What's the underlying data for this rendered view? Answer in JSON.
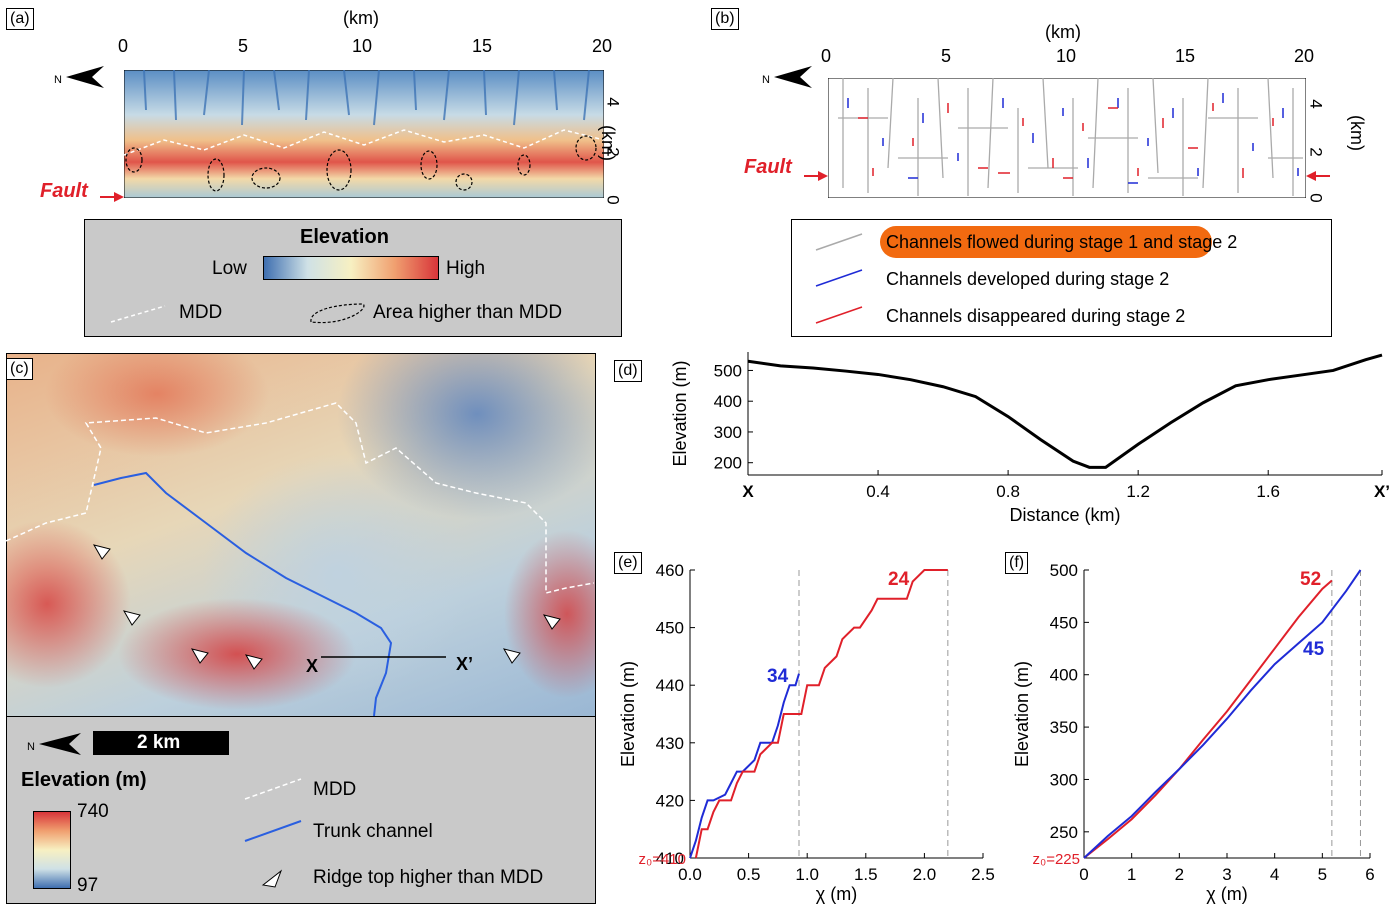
{
  "panels": {
    "a": {
      "label": "(a)",
      "top_unit": "(km)",
      "side_unit": "(km)",
      "top_ticks": [
        "0",
        "5",
        "10",
        "15",
        "20"
      ],
      "side_ticks": [
        "4",
        "2",
        "0"
      ],
      "fault": "Fault",
      "legend": {
        "title": "Elevation",
        "low": "Low",
        "high": "High",
        "mdd": "MDD",
        "area": "Area higher than MDD"
      }
    },
    "b": {
      "label": "(b)",
      "top_unit": "(km)",
      "side_unit": "(km)",
      "top_ticks": [
        "0",
        "5",
        "10",
        "15",
        "20"
      ],
      "side_ticks": [
        "4",
        "2",
        "0"
      ],
      "fault": "Fault",
      "legend": {
        "item1": "Channels flowed during stage 1 and stage 2",
        "item2": "Channels developed during stage 2",
        "item3": "Channels disappeared during stage 2"
      }
    },
    "c": {
      "label": "(c)",
      "scale": "2 km",
      "x_label": "X",
      "xp_label": "X’",
      "legend": {
        "title": "Elevation (m)",
        "max": "740",
        "min": "97",
        "mdd": "MDD",
        "trunk": "Trunk channel",
        "ridge": "Ridge top higher than MDD"
      }
    },
    "d": {
      "label": "(d)"
    },
    "e": {
      "label": "(e)"
    },
    "f": {
      "label": "(f)"
    }
  },
  "colors": {
    "gray": "#aaaaaa",
    "blue": "#1f2bd6",
    "red": "#e0202a",
    "highlight": "#f26a10",
    "legend_bg": "#c9c9c9",
    "fault_red": "#e0202a"
  },
  "chart_data": [
    {
      "id": "d",
      "type": "line",
      "xlabel": "Distance (km)",
      "ylabel": "Elevation (m)",
      "xticks": [
        "X",
        "0.4",
        "0.8",
        "1.2",
        "1.6",
        "X’"
      ],
      "xlim": [
        0,
        1.95
      ],
      "ylim": [
        160,
        560
      ],
      "yticks": [
        200,
        300,
        400,
        500
      ],
      "series": [
        {
          "color": "#000000",
          "x": [
            0,
            0.1,
            0.2,
            0.3,
            0.4,
            0.5,
            0.6,
            0.7,
            0.8,
            0.9,
            1.0,
            1.05,
            1.1,
            1.2,
            1.3,
            1.4,
            1.5,
            1.6,
            1.7,
            1.8,
            1.9,
            1.95
          ],
          "y": [
            530,
            515,
            508,
            498,
            487,
            470,
            447,
            415,
            350,
            275,
            205,
            185,
            185,
            260,
            330,
            395,
            450,
            470,
            485,
            500,
            535,
            550
          ]
        }
      ]
    },
    {
      "id": "e",
      "type": "line",
      "xlabel": "χ (m)",
      "ylabel": "Elevation (m)",
      "base_label": "z₀=410",
      "xlim": [
        0,
        2.5
      ],
      "ylim": [
        410,
        460
      ],
      "xticks": [
        0,
        0.5,
        1.0,
        1.5,
        2.0,
        2.5
      ],
      "yticks": [
        410,
        420,
        430,
        440,
        450,
        460
      ],
      "dashed_x": [
        0.93,
        2.2
      ],
      "series": [
        {
          "label": "34",
          "color": "#1f2bd6",
          "x": [
            0,
            0.05,
            0.1,
            0.15,
            0.2,
            0.3,
            0.35,
            0.4,
            0.45,
            0.55,
            0.6,
            0.7,
            0.75,
            0.8,
            0.85,
            0.9,
            0.93
          ],
          "y": [
            410,
            413,
            417,
            420,
            420,
            421,
            423,
            425,
            425,
            427,
            430,
            430,
            433,
            437,
            440,
            440,
            442
          ]
        },
        {
          "label": "24",
          "color": "#e0202a",
          "x": [
            0.05,
            0.1,
            0.15,
            0.2,
            0.25,
            0.35,
            0.4,
            0.45,
            0.55,
            0.6,
            0.7,
            0.75,
            0.8,
            0.95,
            1.0,
            1.1,
            1.15,
            1.25,
            1.3,
            1.4,
            1.45,
            1.55,
            1.6,
            1.7,
            1.75,
            1.85,
            1.9,
            2.0,
            2.05,
            2.2
          ],
          "y": [
            410,
            415,
            415,
            418,
            420,
            420,
            423,
            425,
            425,
            428,
            430,
            430,
            435,
            435,
            440,
            440,
            443,
            445,
            448,
            450,
            450,
            453,
            455,
            455,
            455,
            455,
            458,
            460,
            460,
            460
          ]
        }
      ]
    },
    {
      "id": "f",
      "type": "line",
      "xlabel": "χ (m)",
      "ylabel": "Elevation (m)",
      "base_label": "z₀=225",
      "xlim": [
        0,
        6
      ],
      "ylim": [
        225,
        500
      ],
      "xticks": [
        0,
        1,
        2,
        3,
        4,
        5,
        6
      ],
      "yticks": [
        250,
        300,
        350,
        400,
        450,
        500
      ],
      "dashed_x": [
        5.2,
        5.8
      ],
      "series": [
        {
          "label": "52",
          "color": "#e0202a",
          "x": [
            0,
            0.5,
            1,
            1.5,
            2,
            2.5,
            3,
            3.5,
            4,
            4.5,
            5,
            5.2
          ],
          "y": [
            225,
            243,
            262,
            285,
            310,
            338,
            365,
            395,
            425,
            455,
            482,
            490
          ]
        },
        {
          "label": "45",
          "color": "#1f2bd6",
          "x": [
            0,
            0.5,
            1,
            1.5,
            2,
            2.5,
            3,
            3.5,
            4,
            4.5,
            5,
            5.5,
            5.8
          ],
          "y": [
            225,
            246,
            265,
            288,
            310,
            333,
            358,
            385,
            410,
            430,
            450,
            480,
            500
          ]
        }
      ]
    }
  ]
}
